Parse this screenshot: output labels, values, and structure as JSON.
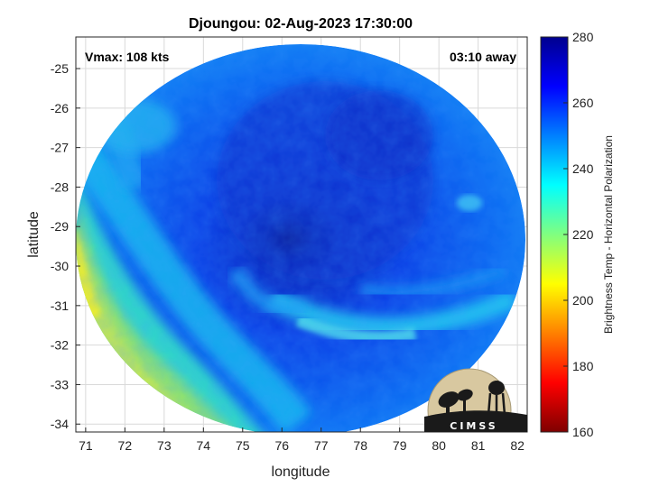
{
  "chart_data": {
    "type": "heatmap",
    "title": "Djoungou: 02-Aug-2023 17:30:00",
    "xlabel": "longitude",
    "ylabel": "latitude",
    "xlim": [
      70.75,
      82.25
    ],
    "ylim": [
      -34.2,
      -24.2
    ],
    "xticks": [
      "71",
      "72",
      "73",
      "74",
      "75",
      "76",
      "77",
      "78",
      "79",
      "80",
      "81",
      "82"
    ],
    "yticks": [
      "-25",
      "-26",
      "-27",
      "-28",
      "-29",
      "-30",
      "-31",
      "-32",
      "-33",
      "-34"
    ],
    "grid": true,
    "annotations": {
      "vmax": "Vmax: 108 kts",
      "away": "03:10 away"
    },
    "storm_center": {
      "lon": 76.2,
      "lat": -29.3
    },
    "colorbar": {
      "label": "Brightness Temp - Horizontal Polarization",
      "range": [
        160,
        280
      ],
      "ticks": [
        "280",
        "260",
        "240",
        "220",
        "200",
        "180",
        "160"
      ],
      "colormap": [
        "#7f0000",
        "#ff0000",
        "#ff8000",
        "#ffff00",
        "#80ff80",
        "#00ffff",
        "#0080ff",
        "#0000ff",
        "#00008f"
      ]
    },
    "logo": {
      "text": "CIMSS"
    }
  }
}
